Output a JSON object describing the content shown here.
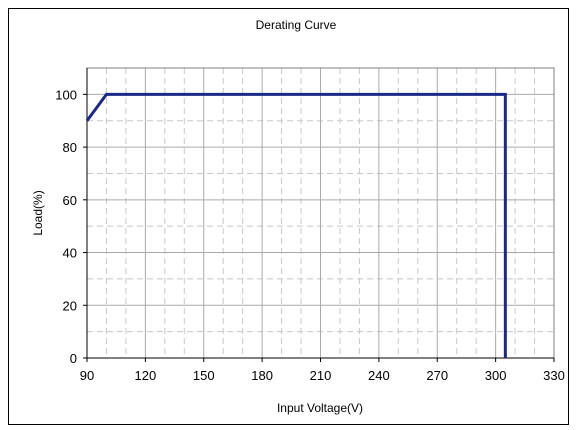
{
  "chart_data": {
    "type": "line",
    "title": "Derating Curve",
    "xlabel": "Input Voltage(V)",
    "ylabel": "Load(%)",
    "xlim": [
      90,
      330
    ],
    "ylim": [
      0,
      110
    ],
    "x_ticks": [
      90,
      120,
      150,
      180,
      210,
      240,
      270,
      300,
      330
    ],
    "y_ticks": [
      0,
      20,
      40,
      60,
      80,
      100
    ],
    "x_tick_labels": [
      "90",
      "120",
      "150",
      "180",
      "210",
      "240",
      "270",
      "300",
      "330"
    ],
    "y_tick_labels": [
      "0",
      "20",
      "40",
      "60",
      "80",
      "100"
    ],
    "x_minor_step": 10,
    "y_minor_step": 10,
    "grid": true,
    "series": [
      {
        "x": [
          90,
          100,
          305,
          305
        ],
        "y": [
          90,
          100,
          100,
          0
        ]
      }
    ],
    "colors": {
      "line": "#1a2a8a",
      "grid_major": "#aaaaaa",
      "grid_minor": "#c8c8c8",
      "frame": "#000000"
    }
  }
}
